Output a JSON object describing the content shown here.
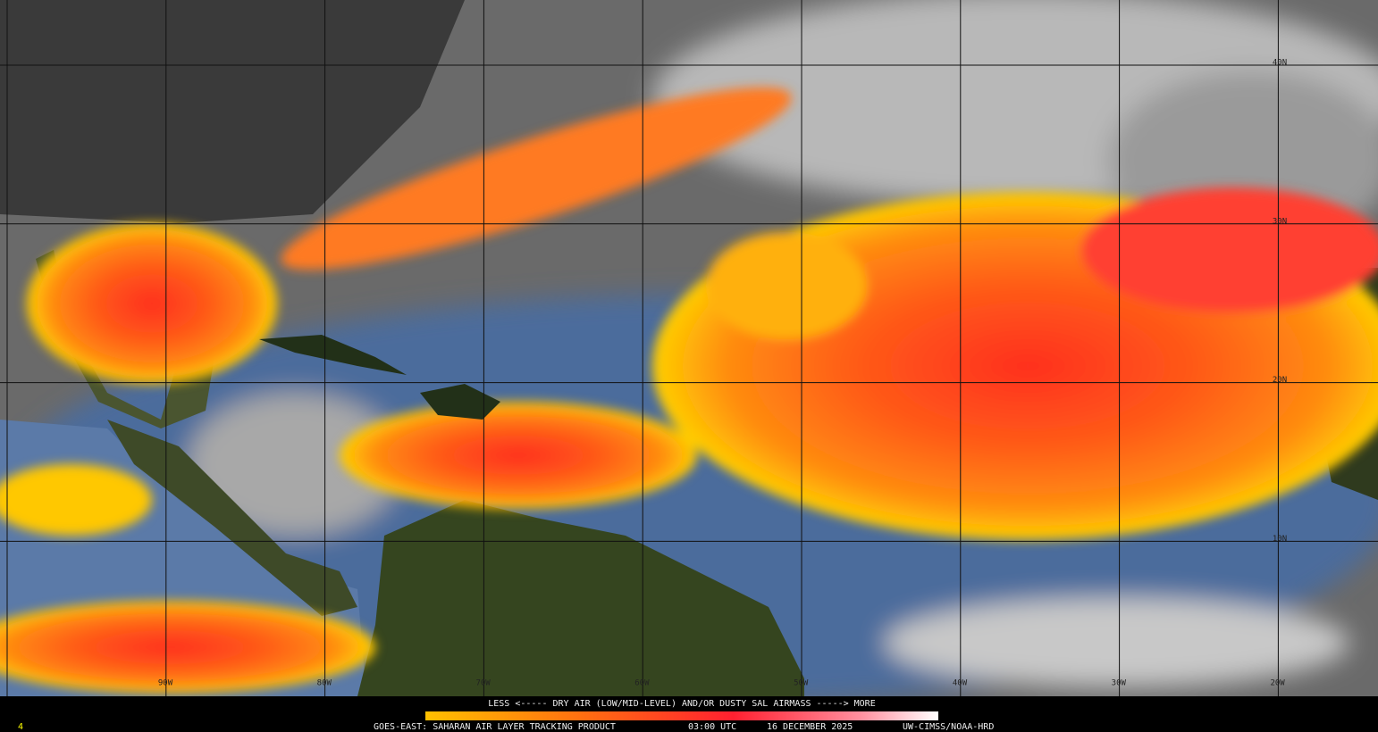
{
  "map": {
    "lat_labels": [
      "40N",
      "30N",
      "20N",
      "10N"
    ],
    "lon_labels": [
      "90W",
      "80W",
      "70W",
      "60W",
      "50W",
      "40W",
      "30W",
      "20W"
    ]
  },
  "legend": {
    "caption": "LESS <----- DRY AIR (LOW/MID-LEVEL) AND/OR DUSTY SAL AIRMASS -----> MORE"
  },
  "footer": {
    "product": "GOES-EAST: SAHARAN AIR LAYER TRACKING PRODUCT",
    "time": "03:00 UTC",
    "date": "16 DECEMBER 2025",
    "credit": "UW-CIMSS/NOAA-HRD",
    "corner": "4"
  }
}
